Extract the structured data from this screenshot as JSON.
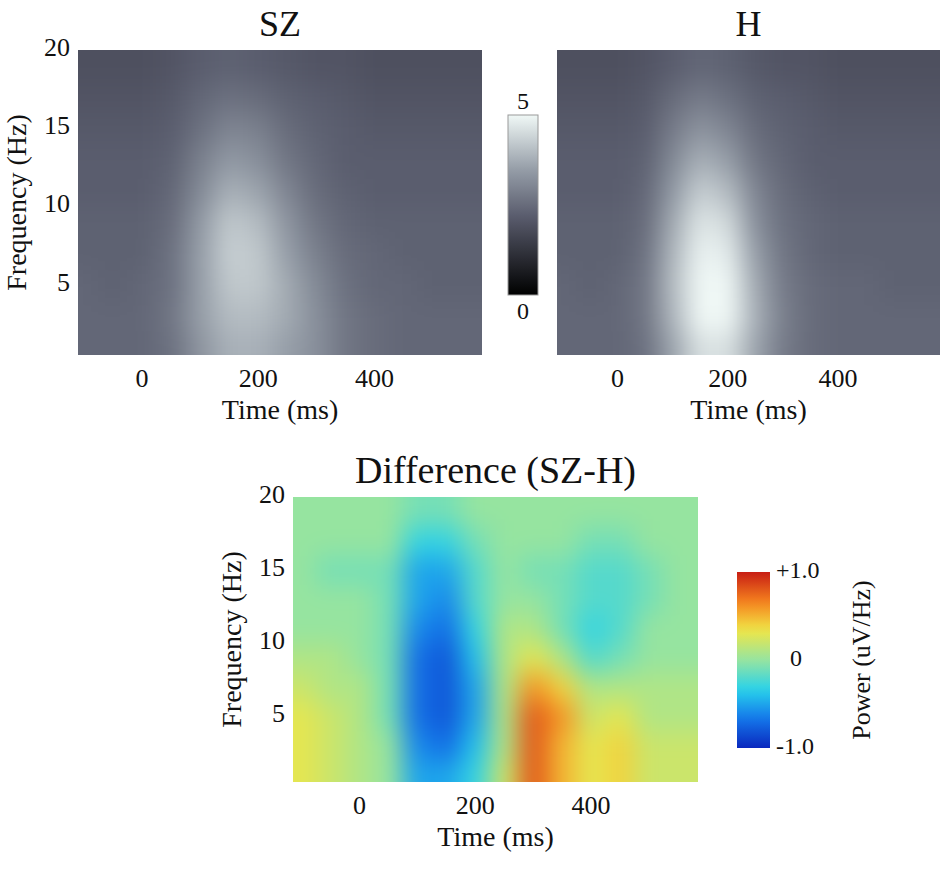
{
  "chart_data": [
    {
      "type": "heatmap",
      "title": "SZ",
      "x_label": "Time (ms)",
      "y_label": "Frequency (Hz)",
      "xlim": [
        -110,
        585
      ],
      "ylim": [
        0.5,
        20
      ],
      "xticks": [
        0,
        200,
        400
      ],
      "yticks": [
        5,
        10,
        15,
        20
      ],
      "x": [
        -100,
        -50,
        0,
        50,
        100,
        150,
        200,
        250,
        300,
        350,
        400,
        450,
        500,
        550
      ],
      "y": [
        1,
        3,
        5,
        7,
        9,
        11,
        13,
        15,
        17,
        19
      ],
      "cells": [
        [
          2.4,
          2.4,
          2.4,
          2.6,
          3.3,
          3.8,
          3.8,
          3.5,
          3.2,
          2.7,
          2.5,
          2.4,
          2.4,
          2.4
        ],
        [
          2.4,
          2.4,
          2.4,
          2.7,
          3.5,
          4.0,
          4.0,
          3.7,
          3.2,
          2.7,
          2.5,
          2.4,
          2.4,
          2.4
        ],
        [
          2.4,
          2.3,
          2.4,
          2.6,
          3.5,
          4.2,
          4.2,
          3.7,
          3.1,
          2.6,
          2.4,
          2.4,
          2.3,
          2.3
        ],
        [
          2.3,
          2.3,
          2.3,
          2.6,
          3.5,
          4.3,
          4.2,
          3.5,
          2.9,
          2.5,
          2.4,
          2.3,
          2.3,
          2.3
        ],
        [
          2.3,
          2.3,
          2.3,
          2.5,
          3.4,
          4.2,
          4.0,
          3.3,
          2.7,
          2.4,
          2.3,
          2.3,
          2.3,
          2.3
        ],
        [
          2.2,
          2.2,
          2.2,
          2.4,
          3.1,
          3.8,
          3.6,
          3.0,
          2.5,
          2.3,
          2.2,
          2.2,
          2.2,
          2.2
        ],
        [
          2.2,
          2.2,
          2.2,
          2.3,
          2.9,
          3.4,
          3.2,
          2.7,
          2.4,
          2.2,
          2.2,
          2.2,
          2.2,
          2.2
        ],
        [
          2.1,
          2.1,
          2.1,
          2.2,
          2.6,
          3.0,
          2.9,
          2.5,
          2.3,
          2.2,
          2.1,
          2.1,
          2.1,
          2.1
        ],
        [
          2.0,
          2.0,
          2.0,
          2.1,
          2.4,
          2.6,
          2.5,
          2.3,
          2.2,
          2.1,
          2.0,
          2.0,
          2.0,
          2.0
        ],
        [
          1.9,
          1.9,
          1.9,
          2.0,
          2.2,
          2.3,
          2.2,
          2.1,
          2.0,
          2.0,
          1.9,
          1.9,
          1.9,
          1.9
        ]
      ],
      "colorbar": {
        "range": [
          0,
          5
        ],
        "ticks": [
          0,
          5
        ]
      }
    },
    {
      "type": "heatmap",
      "title": "H",
      "x_label": "Time (ms)",
      "tick_labels": "x",
      "xlim": [
        -110,
        585
      ],
      "ylim": [
        0.5,
        20
      ],
      "xticks": [
        0,
        200,
        400
      ],
      "x": [
        -100,
        -50,
        0,
        50,
        100,
        150,
        200,
        250,
        300,
        350,
        400,
        450,
        500,
        550
      ],
      "y": [
        1,
        3,
        5,
        7,
        9,
        11,
        13,
        15,
        17,
        19
      ],
      "cells": [
        [
          2.4,
          2.4,
          2.4,
          2.6,
          3.6,
          4.6,
          4.6,
          3.6,
          2.8,
          2.5,
          2.4,
          2.4,
          2.4,
          2.4
        ],
        [
          2.4,
          2.4,
          2.4,
          2.7,
          3.9,
          5.0,
          5.0,
          3.8,
          2.9,
          2.5,
          2.4,
          2.4,
          2.4,
          2.4
        ],
        [
          2.4,
          2.3,
          2.4,
          2.7,
          4.0,
          5.0,
          5.0,
          3.7,
          2.8,
          2.5,
          2.4,
          2.4,
          2.3,
          2.3
        ],
        [
          2.3,
          2.3,
          2.3,
          2.6,
          3.9,
          4.9,
          4.8,
          3.5,
          2.7,
          2.4,
          2.3,
          2.3,
          2.3,
          2.3
        ],
        [
          2.3,
          2.3,
          2.3,
          2.5,
          3.7,
          4.7,
          4.5,
          3.2,
          2.6,
          2.4,
          2.3,
          2.3,
          2.3,
          2.3
        ],
        [
          2.2,
          2.2,
          2.2,
          2.4,
          3.4,
          4.3,
          4.0,
          3.0,
          2.5,
          2.3,
          2.2,
          2.2,
          2.2,
          2.2
        ],
        [
          2.2,
          2.2,
          2.2,
          2.3,
          3.1,
          3.8,
          3.5,
          2.7,
          2.4,
          2.2,
          2.2,
          2.2,
          2.2,
          2.2
        ],
        [
          2.1,
          2.1,
          2.1,
          2.2,
          2.8,
          3.3,
          3.0,
          2.5,
          2.3,
          2.2,
          2.1,
          2.1,
          2.1,
          2.1
        ],
        [
          2.0,
          2.0,
          2.0,
          2.1,
          2.5,
          2.8,
          2.6,
          2.3,
          2.2,
          2.1,
          2.0,
          2.0,
          2.0,
          2.0
        ],
        [
          1.9,
          1.9,
          1.9,
          2.0,
          2.2,
          2.4,
          2.3,
          2.1,
          2.0,
          2.0,
          1.9,
          1.9,
          1.9,
          1.9
        ]
      ]
    },
    {
      "type": "heatmap",
      "title": "Difference (SZ-H)",
      "x_label": "Time (ms)",
      "y_label": "Frequency (Hz)",
      "xlim": [
        -115,
        585
      ],
      "ylim": [
        0.5,
        20
      ],
      "xticks": [
        0,
        200,
        400
      ],
      "yticks": [
        5,
        10,
        15,
        20
      ],
      "x": [
        -100,
        -50,
        0,
        50,
        100,
        150,
        200,
        250,
        300,
        350,
        400,
        450,
        500,
        550
      ],
      "y": [
        1,
        3,
        5,
        7,
        9,
        11,
        13,
        15,
        17,
        19
      ],
      "cells": [
        [
          0.3,
          0.2,
          0.1,
          0.0,
          -0.5,
          -0.5,
          -0.3,
          0.2,
          0.8,
          0.5,
          0.3,
          0.4,
          0.2,
          0.2
        ],
        [
          0.3,
          0.2,
          0.1,
          0.0,
          -0.6,
          -0.7,
          -0.4,
          0.1,
          0.8,
          0.5,
          0.3,
          0.4,
          0.2,
          0.2
        ],
        [
          0.3,
          0.2,
          0.1,
          -0.1,
          -0.7,
          -0.8,
          -0.5,
          0.1,
          0.8,
          0.6,
          0.2,
          0.3,
          0.1,
          0.1
        ],
        [
          0.2,
          0.1,
          0.1,
          -0.1,
          -0.7,
          -0.8,
          -0.5,
          0.1,
          0.6,
          0.4,
          0.1,
          0.1,
          0.1,
          0.1
        ],
        [
          0.1,
          0.1,
          0.0,
          -0.1,
          -0.7,
          -0.8,
          -0.4,
          0.1,
          0.3,
          0.1,
          -0.2,
          -0.1,
          0.0,
          0.0
        ],
        [
          0.0,
          0.0,
          0.0,
          -0.1,
          -0.6,
          -0.7,
          -0.3,
          0.1,
          0.1,
          -0.1,
          -0.3,
          -0.2,
          0.0,
          0.0
        ],
        [
          0.0,
          0.0,
          0.0,
          -0.1,
          -0.5,
          -0.6,
          -0.2,
          0.0,
          0.0,
          -0.1,
          -0.2,
          -0.2,
          -0.1,
          0.0
        ],
        [
          0.0,
          -0.1,
          -0.1,
          -0.1,
          -0.5,
          -0.5,
          -0.2,
          0.0,
          -0.1,
          -0.1,
          -0.2,
          -0.2,
          -0.1,
          0.0
        ],
        [
          0.0,
          0.0,
          0.0,
          0.0,
          -0.3,
          -0.3,
          -0.1,
          0.0,
          0.0,
          0.0,
          -0.1,
          -0.1,
          0.0,
          0.0
        ],
        [
          0.0,
          0.0,
          0.0,
          0.0,
          -0.1,
          -0.1,
          0.0,
          0.0,
          0.0,
          0.0,
          0.0,
          0.0,
          0.0,
          0.0
        ]
      ],
      "colorbar": {
        "range": [
          -1,
          1
        ],
        "ticks": [
          {
            "value": 1,
            "label": "+1.0"
          },
          0,
          {
            "value": -1,
            "label": "-1.0"
          }
        ],
        "label": "Power (uV/Hz)"
      }
    }
  ]
}
